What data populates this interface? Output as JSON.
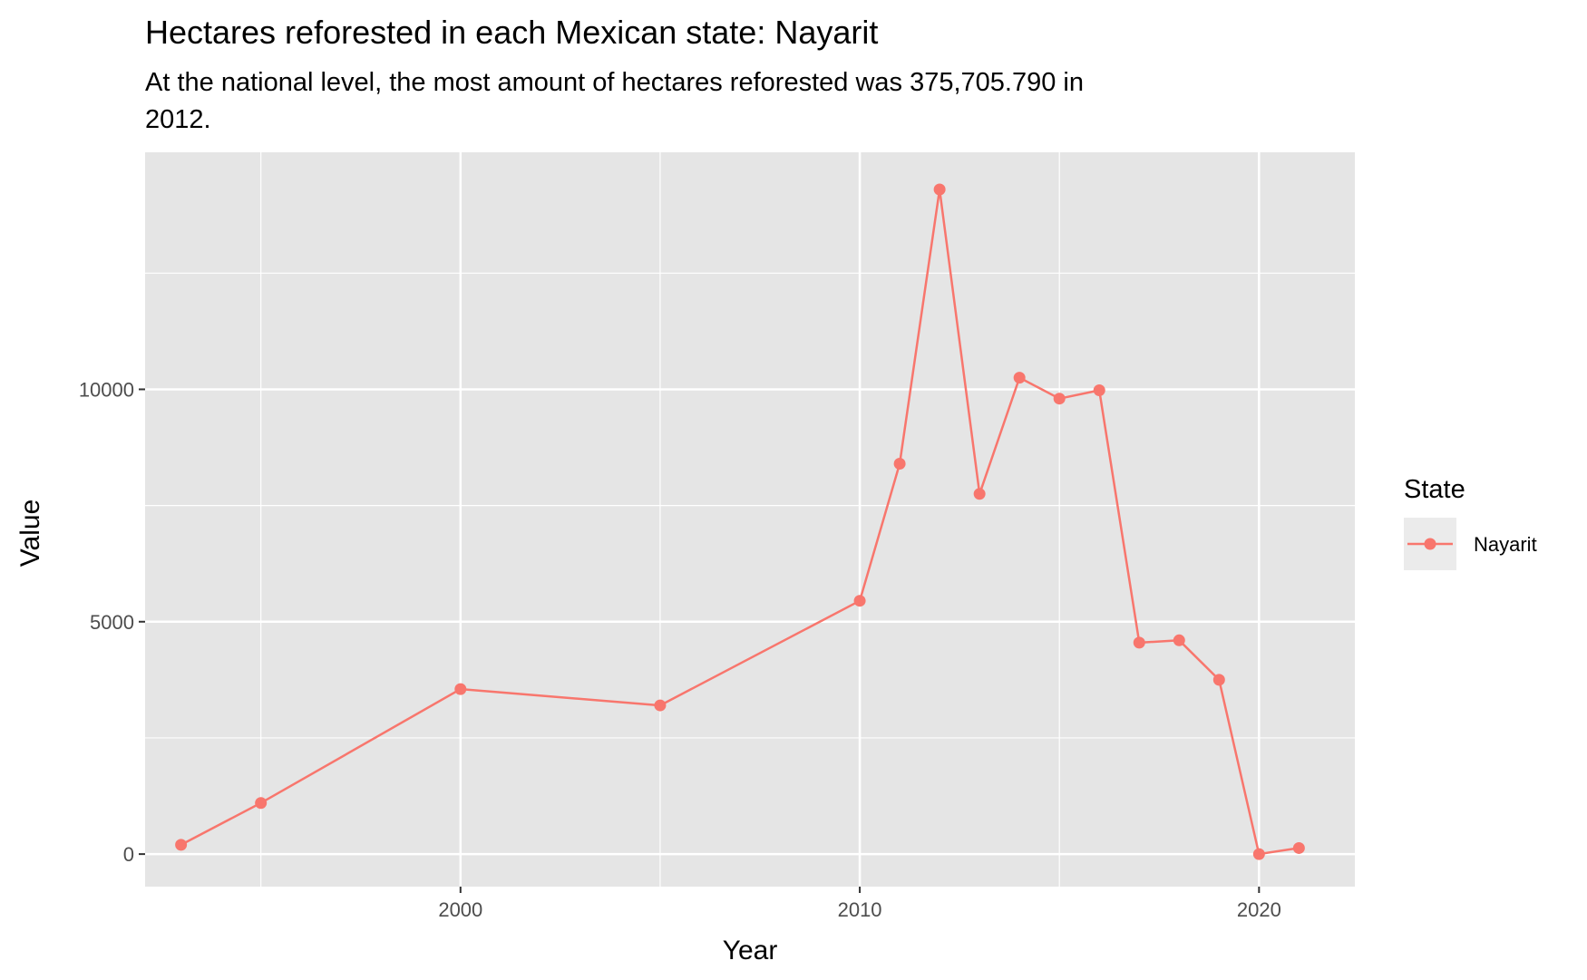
{
  "chart_data": {
    "type": "line",
    "title": "Hectares reforested in each Mexican state: Nayarit",
    "subtitle_lines": [
      "At the national level, the most amount of hectares reforested was 375,705.790 in",
      "2012."
    ],
    "xlabel": "Year",
    "ylabel": "Value",
    "xlim": [
      1992.1,
      2022.4
    ],
    "ylim": [
      -700,
      15100
    ],
    "x_ticks": [
      2000,
      2010,
      2020
    ],
    "x_minor": [
      1995,
      2005,
      2015
    ],
    "y_ticks": [
      0,
      5000,
      10000
    ],
    "y_minor": [
      2500,
      7500,
      12500
    ],
    "grid": true,
    "legend": {
      "title": "State",
      "position": "right"
    },
    "series": [
      {
        "name": "Nayarit",
        "color": "#F8766D",
        "x": [
          1993,
          1995,
          2000,
          2005,
          2010,
          2011,
          2012,
          2013,
          2014,
          2015,
          2016,
          2017,
          2018,
          2019,
          2020,
          2021
        ],
        "y": [
          200,
          1100,
          3550,
          3200,
          5450,
          8400,
          14300,
          7750,
          10250,
          9800,
          9980,
          4550,
          4600,
          3750,
          0,
          130
        ]
      }
    ]
  },
  "colors": {
    "panel_background": "#E5E5E5",
    "grid": "#FFFFFF",
    "legend_key_background": "#EBEBEB"
  }
}
